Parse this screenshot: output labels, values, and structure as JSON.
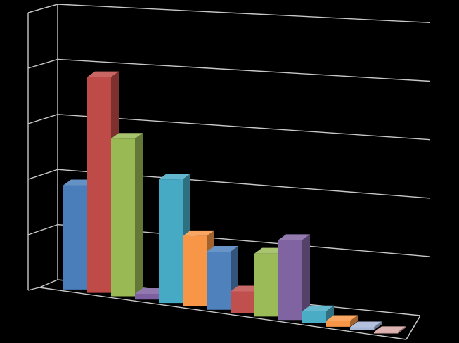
{
  "chart_data": {
    "type": "bar",
    "style": "3d-clustered-column",
    "title": "",
    "xlabel": "",
    "ylabel": "",
    "ylim": [
      0,
      5
    ],
    "grid": true,
    "legend": "none",
    "tick_labels_shown": false,
    "values": [
      2.15,
      4.45,
      3.25,
      0.12,
      2.55,
      1.45,
      1.2,
      0.45,
      1.3,
      1.65,
      0.25,
      0.12,
      0.06,
      0.03
    ],
    "colors": [
      "#4a7ebb",
      "#be4b48",
      "#98b954",
      "#7d60a0",
      "#46aac5",
      "#f79646",
      "#4f81bd",
      "#c0504d",
      "#9bbb59",
      "#8064a2",
      "#4bacc6",
      "#f79646",
      "#a6b6d7",
      "#d8a7a6"
    ]
  },
  "theme": {
    "background": "#000000",
    "gridline_color": "#c8c8c8",
    "axis_color": "#c8c8c8"
  }
}
